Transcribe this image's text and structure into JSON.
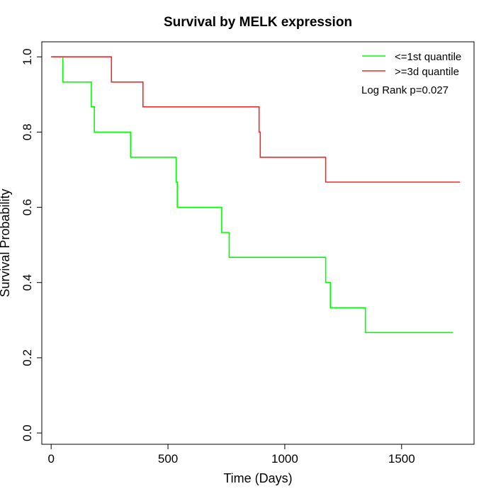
{
  "chart_data": {
    "type": "line",
    "title": "Survival by MELK expression",
    "xlabel": "Time (Days)",
    "ylabel": "Survival Probability",
    "xlim": [
      -40,
      1810
    ],
    "ylim": [
      -0.03,
      1.04
    ],
    "xticks": [
      0,
      500,
      1000,
      1500
    ],
    "yticks": [
      0.0,
      0.2,
      0.4,
      0.6,
      0.8,
      1.0
    ],
    "xtick_labels": [
      "0",
      "500",
      "1000",
      "1500"
    ],
    "ytick_labels": [
      "0.0",
      "0.2",
      "0.4",
      "0.6",
      "0.8",
      "1.0"
    ],
    "grid": false,
    "legend_position": "top-right",
    "annotation": "Log Rank p=0.027",
    "series": [
      {
        "name": "<=1st quantile",
        "color": "#00ff00",
        "step": true,
        "x": [
          0,
          50,
          172,
          185,
          340,
          535,
          540,
          730,
          762,
          1175,
          1195,
          1345,
          1720
        ],
        "y": [
          1.0,
          0.933,
          0.867,
          0.8,
          0.733,
          0.667,
          0.6,
          0.533,
          0.467,
          0.4,
          0.333,
          0.267,
          0.267
        ]
      },
      {
        "name": ">=3d quantile",
        "color": "#ee2c2c",
        "step": true,
        "x": [
          0,
          258,
          393,
          890,
          895,
          1175,
          1750
        ],
        "y": [
          1.0,
          0.933,
          0.867,
          0.8,
          0.733,
          0.667,
          0.667
        ]
      }
    ]
  }
}
